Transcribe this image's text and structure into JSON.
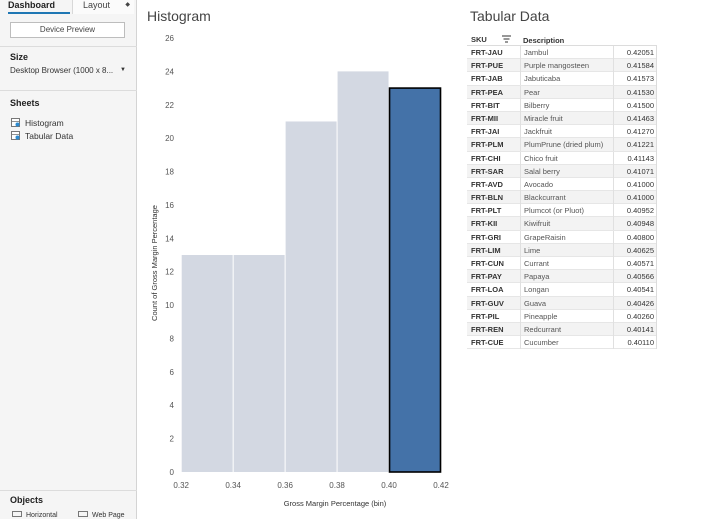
{
  "left_pane": {
    "tabs": [
      "Dashboard",
      "Layout"
    ],
    "device_preview_label": "Device Preview",
    "size_title": "Size",
    "size_value": "Desktop Browser (1000 x 8...",
    "sheets_title": "Sheets",
    "sheets": [
      {
        "label": "Histogram",
        "icon": "worksheet-icon"
      },
      {
        "label": "Tabular Data",
        "icon": "worksheet-icon"
      }
    ],
    "objects_title": "Objects",
    "objects": [
      {
        "label": "Horizontal",
        "icon": "horizontal-container-icon"
      },
      {
        "label": "Web Page",
        "icon": "web-page-icon"
      }
    ]
  },
  "histogram": {
    "title": "Histogram",
    "bar_fill": "#d3d8e2",
    "selected_fill": "#4472a8",
    "selected_outline": "#000000"
  },
  "chart_data": {
    "type": "bar",
    "title": "Histogram",
    "xlabel": "Gross Margin Percentage (bin)",
    "ylabel": "Count of Gross Margin Percentage",
    "bin_width": 0.02,
    "bin_starts": [
      0.32,
      0.34,
      0.36,
      0.38,
      0.4
    ],
    "x_tick_labels": [
      "0.32",
      "0.34",
      "0.36",
      "0.38",
      "0.40",
      "0.42"
    ],
    "x_ticks": [
      0.32,
      0.34,
      0.36,
      0.38,
      0.4,
      0.42
    ],
    "values": [
      13,
      13,
      21,
      24,
      23
    ],
    "selected_bin": 4,
    "xlim": [
      0.318,
      0.425
    ],
    "y_tick_labels": [
      "0",
      "2",
      "4",
      "6",
      "8",
      "10",
      "12",
      "14",
      "16",
      "18",
      "20",
      "22",
      "24",
      "26"
    ],
    "y_ticks": [
      0,
      2,
      4,
      6,
      8,
      10,
      12,
      14,
      16,
      18,
      20,
      22,
      24,
      26
    ],
    "ylim": [
      0,
      26
    ],
    "grid": false
  },
  "table": {
    "title": "Tabular Data",
    "headers": {
      "sku": "SKU",
      "description": "Description"
    },
    "sort_icon": "sort-descending-icon",
    "rows": [
      {
        "sku": "FRT-JAU",
        "description": "Jambul",
        "value": "0.42051"
      },
      {
        "sku": "FRT-PUE",
        "description": "Purple mangosteen",
        "value": "0.41584"
      },
      {
        "sku": "FRT-JAB",
        "description": "Jabuticaba",
        "value": "0.41573"
      },
      {
        "sku": "FRT-PEA",
        "description": "Pear",
        "value": "0.41530"
      },
      {
        "sku": "FRT-BIT",
        "description": "Bilberry",
        "value": "0.41500"
      },
      {
        "sku": "FRT-MII",
        "description": "Miracle fruit",
        "value": "0.41463"
      },
      {
        "sku": "FRT-JAI",
        "description": "Jackfruit",
        "value": "0.41270"
      },
      {
        "sku": "FRT-PLM",
        "description": "PlumPrune (dried plum)",
        "value": "0.41221"
      },
      {
        "sku": "FRT-CHI",
        "description": "Chico fruit",
        "value": "0.41143"
      },
      {
        "sku": "FRT-SAR",
        "description": "Salal berry",
        "value": "0.41071"
      },
      {
        "sku": "FRT-AVD",
        "description": "Avocado",
        "value": "0.41000"
      },
      {
        "sku": "FRT-BLN",
        "description": "Blackcurrant",
        "value": "0.41000"
      },
      {
        "sku": "FRT-PLT",
        "description": "Plumcot (or Pluot)",
        "value": "0.40952"
      },
      {
        "sku": "FRT-KII",
        "description": "Kiwifruit",
        "value": "0.40948"
      },
      {
        "sku": "FRT-GRI",
        "description": "GrapeRaisin",
        "value": "0.40800"
      },
      {
        "sku": "FRT-LIM",
        "description": "Lime",
        "value": "0.40625"
      },
      {
        "sku": "FRT-CUN",
        "description": "Currant",
        "value": "0.40571"
      },
      {
        "sku": "FRT-PAY",
        "description": "Papaya",
        "value": "0.40566"
      },
      {
        "sku": "FRT-LOA",
        "description": "Longan",
        "value": "0.40541"
      },
      {
        "sku": "FRT-GUV",
        "description": "Guava",
        "value": "0.40426"
      },
      {
        "sku": "FRT-PIL",
        "description": "Pineapple",
        "value": "0.40260"
      },
      {
        "sku": "FRT-REN",
        "description": "Redcurrant",
        "value": "0.40141"
      },
      {
        "sku": "FRT-CUE",
        "description": "Cucumber",
        "value": "0.40110"
      }
    ]
  }
}
